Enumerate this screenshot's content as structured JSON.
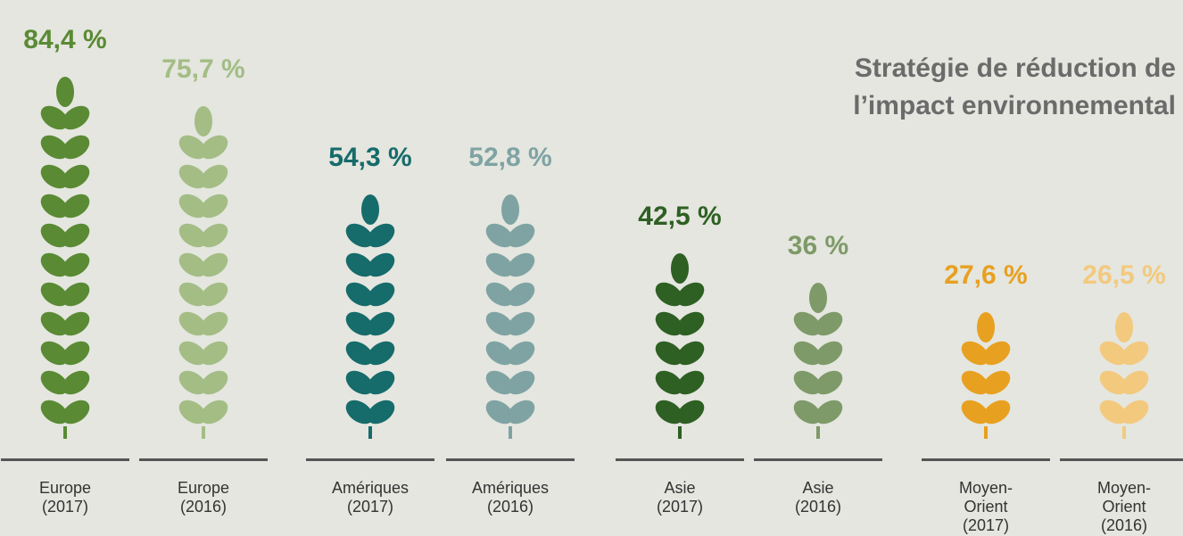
{
  "chart_data": {
    "type": "bar",
    "title": [
      "Stratégie de réduction de",
      "l’impact environnemental"
    ],
    "categories": [
      [
        "Europe",
        "(2017)"
      ],
      [
        "Europe",
        "(2016)"
      ],
      [
        "Amériques",
        "(2017)"
      ],
      [
        "Amériques",
        "(2016)"
      ],
      [
        "Asie",
        "(2017)"
      ],
      [
        "Asie",
        "(2016)"
      ],
      [
        "Moyen-",
        "Orient",
        "(2017)"
      ],
      [
        "Moyen-",
        "Orient",
        "(2016)"
      ]
    ],
    "values": [
      84.4,
      75.7,
      54.3,
      52.8,
      42.5,
      36,
      27.6,
      26.5
    ],
    "value_labels": [
      "84,4 %",
      "75,7 %",
      "54,3 %",
      "52,8 %",
      "42,5 %",
      "36 %",
      "27,6 %",
      "26,5 %"
    ],
    "colors": [
      "#5a8a34",
      "#a3bd85",
      "#166b6b",
      "#7fa3a3",
      "#2e5f23",
      "#7e9a68",
      "#e8a020",
      "#f3c97e"
    ]
  }
}
